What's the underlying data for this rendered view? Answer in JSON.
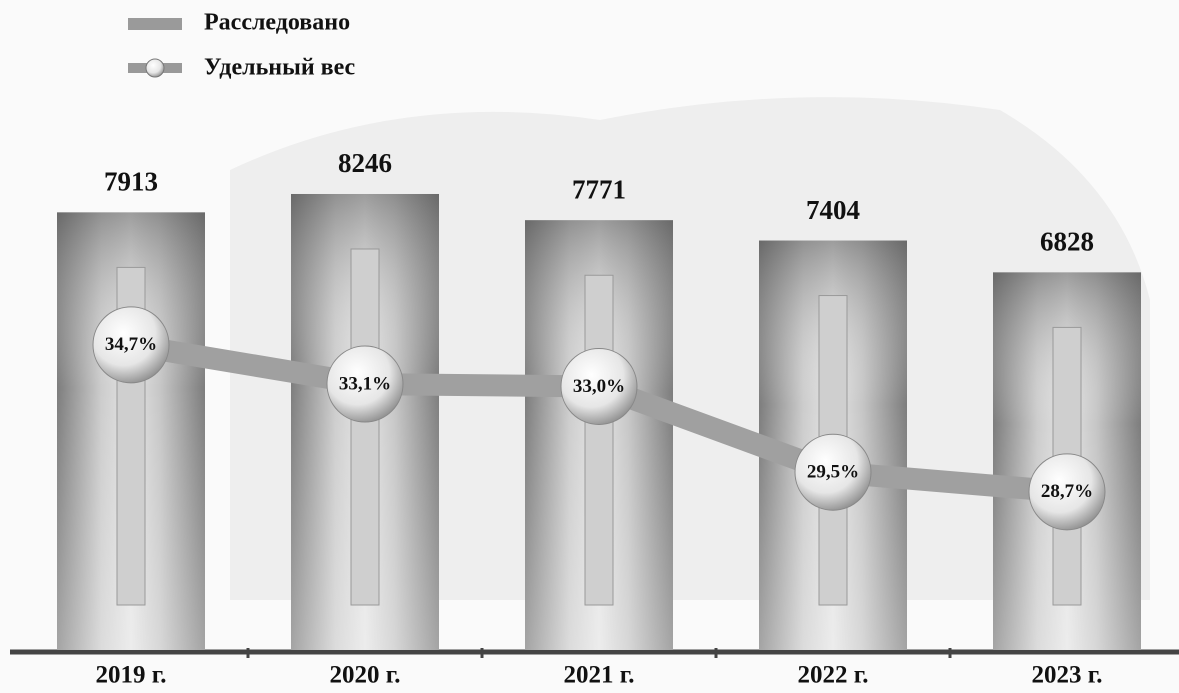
{
  "chart_data": {
    "type": "bar-line",
    "categories": [
      "2019 г.",
      "2020 г.",
      "2021 г.",
      "2022 г.",
      "2023 г."
    ],
    "series": [
      {
        "name": "Расследовано",
        "type": "bar",
        "color": "#8c8c8c",
        "values": [
          7913,
          8246,
          7771,
          7404,
          6828
        ]
      },
      {
        "name": "Удельный вес",
        "type": "line",
        "color": "#a0a0a0",
        "values": [
          34.7,
          33.1,
          33.0,
          29.5,
          28.7
        ],
        "value_labels": [
          "34,7%",
          "33,1%",
          "33,0%",
          "29,5%",
          "28,7%"
        ]
      }
    ]
  }
}
